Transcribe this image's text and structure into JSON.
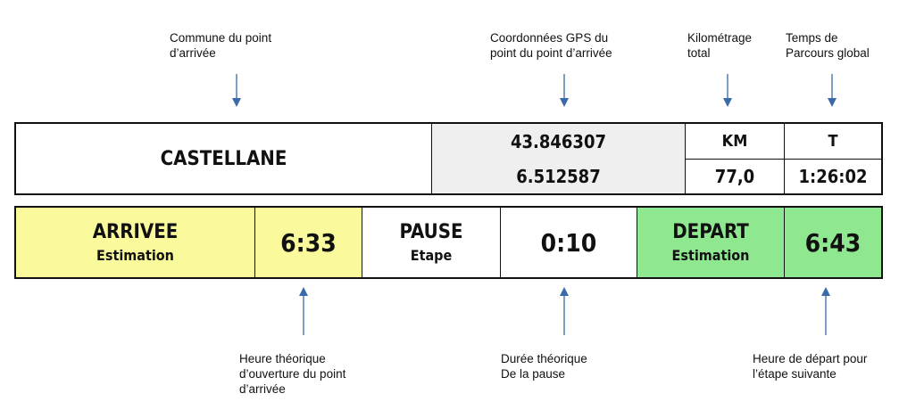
{
  "annotations": {
    "commune": "Commune du point\nd’arrivée",
    "gps": "Coordonnées GPS du\npoint du point d’arrivée",
    "km": "Kilométrage\ntotal",
    "temps": "Temps de\nParcours global",
    "heure_arrivee": "Heure théorique\nd’ouverture du point\nd’arrivée",
    "duree_pause": "Durée théorique\nDe la pause",
    "heure_depart": "Heure de départ pour\nl’étape suivante"
  },
  "info": {
    "commune": "CASTELLANE",
    "latitude": "43.846307",
    "longitude": "6.512587",
    "km_label": "KM",
    "km_value": "77,0",
    "t_label": "T",
    "t_value": "1:26:02"
  },
  "timing": {
    "arrivee_label": "ARRIVEE",
    "arrivee_sub": "Estimation",
    "arrivee_time": "6:33",
    "pause_label": "PAUSE",
    "pause_sub": "Etape",
    "pause_time": "0:10",
    "depart_label": "DEPART",
    "depart_sub": "Estimation",
    "depart_time": "6:43"
  },
  "colors": {
    "arrivee": "#fafa9c",
    "depart": "#8fe88f",
    "gps_bg": "#efefef",
    "arrow": "#3a6aa8"
  }
}
